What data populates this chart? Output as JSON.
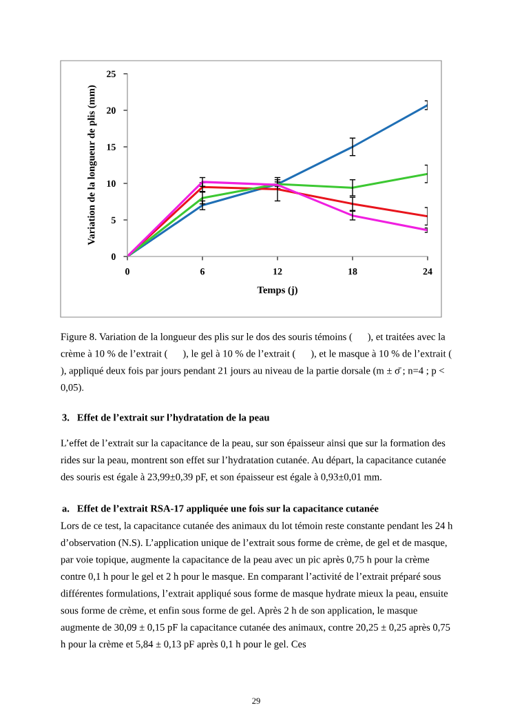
{
  "chart_data": {
    "type": "line",
    "xlabel": "Temps (j)",
    "ylabel": "Variation de la longueur de plis (mm)",
    "x": [
      0,
      6,
      12,
      18,
      24
    ],
    "xlim": [
      0,
      24
    ],
    "xticks": [
      0,
      6,
      12,
      18,
      24
    ],
    "ylim": [
      0,
      25
    ],
    "yticks": [
      0,
      5,
      10,
      15,
      20,
      25
    ],
    "grid": false,
    "legend": false,
    "marker": "none",
    "line_style": "solid",
    "series": [
      {
        "color": "#1f6fb5",
        "values": [
          0,
          7.0,
          9.9,
          15.0,
          20.7
        ],
        "errors": [
          null,
          0.6,
          0.6,
          1.2,
          0.6
        ]
      },
      {
        "color": "#e8141c",
        "values": [
          0,
          9.5,
          9.2,
          7.2,
          5.5
        ],
        "errors": [
          null,
          0.6,
          1.6,
          0.9,
          1.2
        ]
      },
      {
        "color": "#3cc832",
        "values": [
          0,
          8.0,
          9.9,
          9.4,
          11.3
        ],
        "errors": [
          null,
          0.8,
          0.3,
          1.1,
          1.2
        ]
      },
      {
        "color": "#f01fe0",
        "values": [
          0,
          10.2,
          9.8,
          5.6,
          3.6
        ],
        "errors": [
          null,
          0.6,
          null,
          0.6,
          0.3
        ]
      }
    ],
    "annotations": [
      "Figure 8. Variation de la longueur des plis sur le dos des souris témoins (      ), et traitées avec la crème à 10 % de l’extrait (      ), le gel à 10 % de l’extrait (      ), et le masque à 10 % de l’extrait (      ), appliqué deux fois par jours pendant 21 jours au niveau de la partie dorsale (m ± σ̄ ; n=4 ; p < 0,05).",
      "3.   Effet de l’extrait sur l’hydratation de la peau",
      "L’effet de l’extrait sur la capacitance de la peau, sur son épaisseur ainsi que sur la formation des rides sur la peau, montrent son effet sur l’hydratation cutanée. Au départ, la capacitance cutanée des souris est égale à 23,99±0,39 pF, et son épaisseur est égale à 0,93±0,01 mm.",
      "a.   Effet de l’extrait RSA-17 appliquée une fois sur la capacitance cutanée",
      "Lors de ce test, la capacitance cutanée des animaux du lot témoin reste constante pendant les 24 h d’observation (N.S). L’application unique de l’extrait sous forme de crème, de gel et de masque, par voie topique, augmente la capacitance de la peau avec un pic après 0,75 h pour la crème contre 0,1 h pour le gel et 2 h pour le masque. En comparant l’activité de l’extrait préparé sous différentes formulations, l’extrait appliqué sous forme de masque hydrate mieux la peau, ensuite sous forme de crème, et enfin sous forme de gel. Après 2 h de son application, le masque augmente de 30,09 ± 0,15 pF la capacitance cutanée des animaux, contre 20,25 ± 0,25 après 0,75 h pour la crème et 5,84 ± 0,13 pF après 0,1 h pour le gel. Ces",
      "29"
    ]
  }
}
